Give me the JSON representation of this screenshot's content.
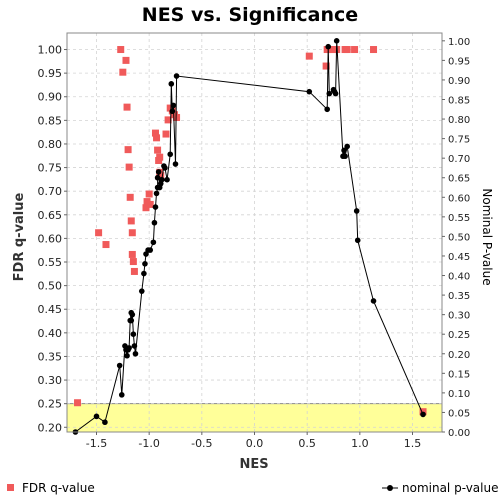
{
  "chart_data": {
    "type": "scatter",
    "title": "NES vs. Significance",
    "xlabel": "NES",
    "ylabel": "FDR q-value",
    "y2label": "Nominal P-value",
    "xlim": [
      -1.78,
      1.78
    ],
    "ylim": [
      0.19,
      1.035
    ],
    "y2lim": [
      0.0,
      1.02
    ],
    "x_ticks": [
      "-1.5",
      "-1.0",
      "-0.5",
      "0.0",
      "0.5",
      "1.0",
      "1.5"
    ],
    "x_tick_values": [
      -1.5,
      -1.0,
      -0.5,
      0.0,
      0.5,
      1.0,
      1.5
    ],
    "y_ticks": [
      "0.20",
      "0.25",
      "0.30",
      "0.35",
      "0.40",
      "0.45",
      "0.50",
      "0.55",
      "0.60",
      "0.65",
      "0.70",
      "0.75",
      "0.80",
      "0.85",
      "0.90",
      "0.95",
      "1.00"
    ],
    "y_tick_values": [
      0.2,
      0.25,
      0.3,
      0.35,
      0.4,
      0.45,
      0.5,
      0.55,
      0.6,
      0.65,
      0.7,
      0.75,
      0.8,
      0.85,
      0.9,
      0.95,
      1.0
    ],
    "y2_ticks": [
      "0.00",
      "0.05",
      "0.10",
      "0.15",
      "0.20",
      "0.25",
      "0.30",
      "0.35",
      "0.40",
      "0.45",
      "0.50",
      "0.55",
      "0.60",
      "0.65",
      "0.70",
      "0.75",
      "0.80",
      "0.85",
      "0.90",
      "0.95",
      "1.00"
    ],
    "y2_tick_values": [
      0.0,
      0.05,
      0.1,
      0.15,
      0.2,
      0.25,
      0.3,
      0.35,
      0.4,
      0.45,
      0.5,
      0.55,
      0.6,
      0.65,
      0.7,
      0.75,
      0.8,
      0.85,
      0.9,
      0.95,
      1.0
    ],
    "grid": true,
    "highlight_band": {
      "y_from": 0.19,
      "y_to": 0.25,
      "color": "#ffff99"
    },
    "legend_position": "bottom",
    "series": [
      {
        "name": "FDR q-value",
        "axis": "left",
        "marker": "square",
        "color": "#f05a5a",
        "points": [
          [
            -1.68,
            0.252
          ],
          [
            -1.48,
            0.612
          ],
          [
            -1.41,
            0.587
          ],
          [
            -1.27,
            1.0
          ],
          [
            -1.25,
            0.952
          ],
          [
            -1.22,
            0.977
          ],
          [
            -1.21,
            0.878
          ],
          [
            -1.2,
            0.788
          ],
          [
            -1.19,
            0.751
          ],
          [
            -1.18,
            0.687
          ],
          [
            -1.17,
            0.637
          ],
          [
            -1.16,
            0.612
          ],
          [
            -1.16,
            0.566
          ],
          [
            -1.15,
            0.551
          ],
          [
            -1.14,
            0.53
          ],
          [
            -1.03,
            0.665
          ],
          [
            -1.02,
            0.678
          ],
          [
            -1.0,
            0.694
          ],
          [
            -0.99,
            0.672
          ],
          [
            -0.94,
            0.823
          ],
          [
            -0.93,
            0.813
          ],
          [
            -0.92,
            0.787
          ],
          [
            -0.91,
            0.765
          ],
          [
            -0.9,
            0.74
          ],
          [
            -0.9,
            0.772
          ],
          [
            -0.89,
            0.733
          ],
          [
            -0.84,
            0.821
          ],
          [
            -0.82,
            0.851
          ],
          [
            -0.8,
            0.876
          ],
          [
            -0.78,
            0.87
          ],
          [
            -0.76,
            0.862
          ],
          [
            -0.74,
            0.856
          ],
          [
            0.52,
            0.986
          ],
          [
            0.68,
            0.965
          ],
          [
            0.69,
            1.0
          ],
          [
            0.71,
            1.0
          ],
          [
            0.74,
            1.0
          ],
          [
            0.78,
            1.0
          ],
          [
            0.86,
            1.0
          ],
          [
            0.88,
            1.0
          ],
          [
            0.95,
            1.0
          ],
          [
            1.13,
            1.0
          ],
          [
            1.6,
            0.233
          ]
        ]
      },
      {
        "name": "nominal p-value",
        "axis": "right",
        "marker": "circle",
        "color": "#000000",
        "connected": true,
        "points": [
          [
            -1.7,
            0.0
          ],
          [
            -1.5,
            0.04
          ],
          [
            -1.42,
            0.025
          ],
          [
            -1.28,
            0.17
          ],
          [
            -1.26,
            0.095
          ],
          [
            -1.23,
            0.22
          ],
          [
            -1.22,
            0.21
          ],
          [
            -1.21,
            0.195
          ],
          [
            -1.2,
            0.21
          ],
          [
            -1.19,
            0.215
          ],
          [
            -1.18,
            0.285
          ],
          [
            -1.17,
            0.305
          ],
          [
            -1.17,
            0.285
          ],
          [
            -1.16,
            0.3
          ],
          [
            -1.15,
            0.25
          ],
          [
            -1.14,
            0.22
          ],
          [
            -1.13,
            0.2
          ],
          [
            -1.07,
            0.36
          ],
          [
            -1.05,
            0.405
          ],
          [
            -1.04,
            0.43
          ],
          [
            -1.03,
            0.455
          ],
          [
            -1.01,
            0.465
          ],
          [
            -0.99,
            0.465
          ],
          [
            -0.96,
            0.485
          ],
          [
            -0.95,
            0.535
          ],
          [
            -0.94,
            0.575
          ],
          [
            -0.93,
            0.61
          ],
          [
            -0.92,
            0.625
          ],
          [
            -0.92,
            0.65
          ],
          [
            -0.91,
            0.665
          ],
          [
            -0.9,
            0.625
          ],
          [
            -0.89,
            0.635
          ],
          [
            -0.88,
            0.645
          ],
          [
            -0.86,
            0.68
          ],
          [
            -0.85,
            0.675
          ],
          [
            -0.83,
            0.645
          ],
          [
            -0.8,
            0.71
          ],
          [
            -0.79,
            0.89
          ],
          [
            -0.78,
            0.82
          ],
          [
            -0.77,
            0.835
          ],
          [
            -0.75,
            0.685
          ],
          [
            -0.74,
            0.91
          ],
          [
            0.52,
            0.87
          ],
          [
            0.69,
            0.825
          ],
          [
            0.7,
            0.985
          ],
          [
            0.71,
            0.865
          ],
          [
            0.75,
            0.875
          ],
          [
            0.76,
            0.87
          ],
          [
            0.77,
            0.865
          ],
          [
            0.78,
            1.0
          ],
          [
            0.84,
            0.705
          ],
          [
            0.85,
            0.72
          ],
          [
            0.86,
            0.705
          ],
          [
            0.88,
            0.73
          ],
          [
            0.97,
            0.565
          ],
          [
            0.98,
            0.49
          ],
          [
            1.13,
            0.335
          ],
          [
            1.6,
            0.045
          ]
        ]
      }
    ]
  }
}
